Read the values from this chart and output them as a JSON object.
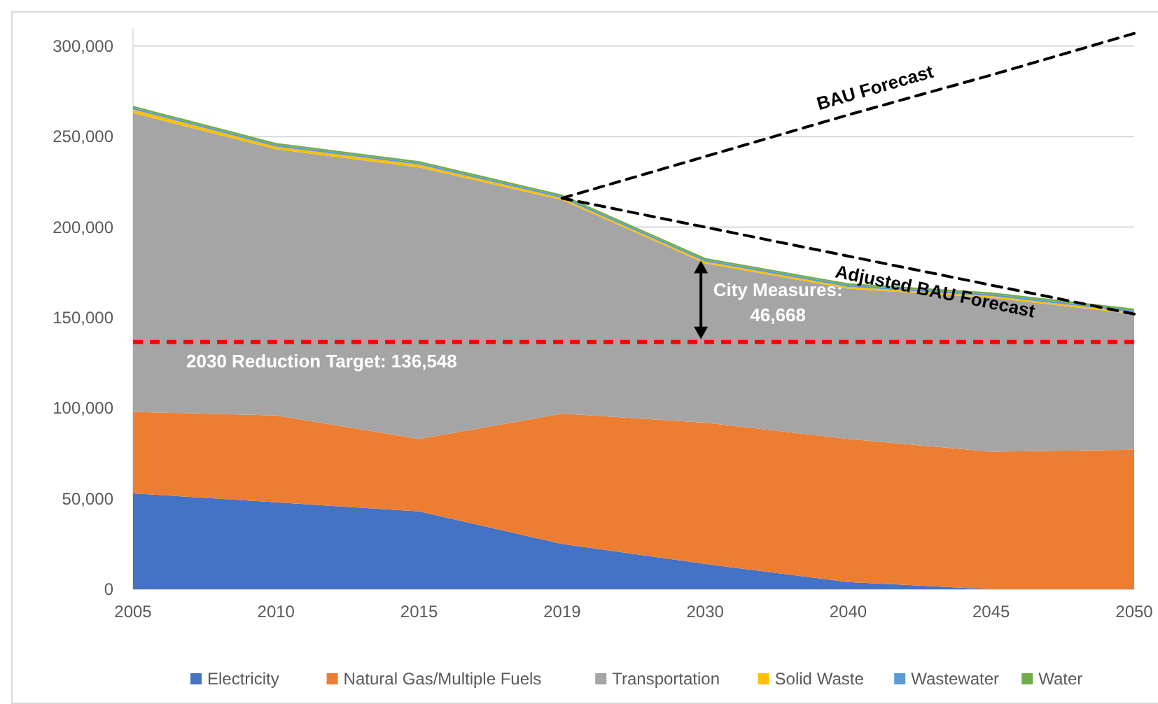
{
  "chart_data": {
    "type": "area",
    "stacked": true,
    "categories": [
      "2005",
      "2010",
      "2015",
      "2019",
      "2030",
      "2040",
      "2045",
      "2050"
    ],
    "series": [
      {
        "name": "Electricity",
        "color": "#4472c4",
        "values": [
          53000,
          48000,
          43000,
          25000,
          14000,
          4000,
          0,
          0
        ]
      },
      {
        "name": "Natural Gas/Multiple Fuels",
        "color": "#ed7d31",
        "values": [
          45000,
          48000,
          40000,
          72000,
          78000,
          79000,
          76000,
          77000
        ]
      },
      {
        "name": "Transportation",
        "color": "#a5a5a5",
        "values": [
          165000,
          147000,
          150000,
          118000,
          88000,
          83000,
          85000,
          75000
        ]
      },
      {
        "name": "Solid Waste",
        "color": "#ffc000",
        "values": [
          2000,
          1500,
          1500,
          1000,
          1000,
          1000,
          1000,
          1000
        ]
      },
      {
        "name": "Wastewater",
        "color": "#5b9bd5",
        "values": [
          1000,
          1000,
          1000,
          1000,
          1000,
          1000,
          1000,
          1000
        ]
      },
      {
        "name": "Water",
        "color": "#70ad47",
        "values": [
          1000,
          1000,
          1000,
          1000,
          1000,
          1000,
          1000,
          1000
        ]
      },
      {
        "name": "BAU Forecast",
        "type": "line",
        "color": "#000000",
        "line_style": "dashed",
        "values": [
          null,
          null,
          null,
          216000,
          239000,
          262000,
          284000,
          307000
        ]
      },
      {
        "name": "Adjusted BAU Forecast",
        "type": "line",
        "color": "#000000",
        "line_style": "dashed",
        "values": [
          null,
          null,
          null,
          216000,
          200000,
          184000,
          168000,
          152000
        ]
      }
    ],
    "ylim": [
      0,
      310000
    ],
    "yticks": [
      {
        "value": 0,
        "label": "0"
      },
      {
        "value": 50000,
        "label": "50,000"
      },
      {
        "value": 100000,
        "label": "100,000"
      },
      {
        "value": 150000,
        "label": "150,000"
      },
      {
        "value": 200000,
        "label": "200,000"
      },
      {
        "value": 250000,
        "label": "250,000"
      },
      {
        "value": 300000,
        "label": "300,000"
      }
    ],
    "grid": "y",
    "legend": "bottom",
    "ref_lines": [
      {
        "axis": "y",
        "value": 136548,
        "label": "2030 Reduction Target: 136,548",
        "color": "#ff0000",
        "line_style": "dashed"
      }
    ],
    "annotations": [
      "City Measures: 46,668"
    ]
  }
}
